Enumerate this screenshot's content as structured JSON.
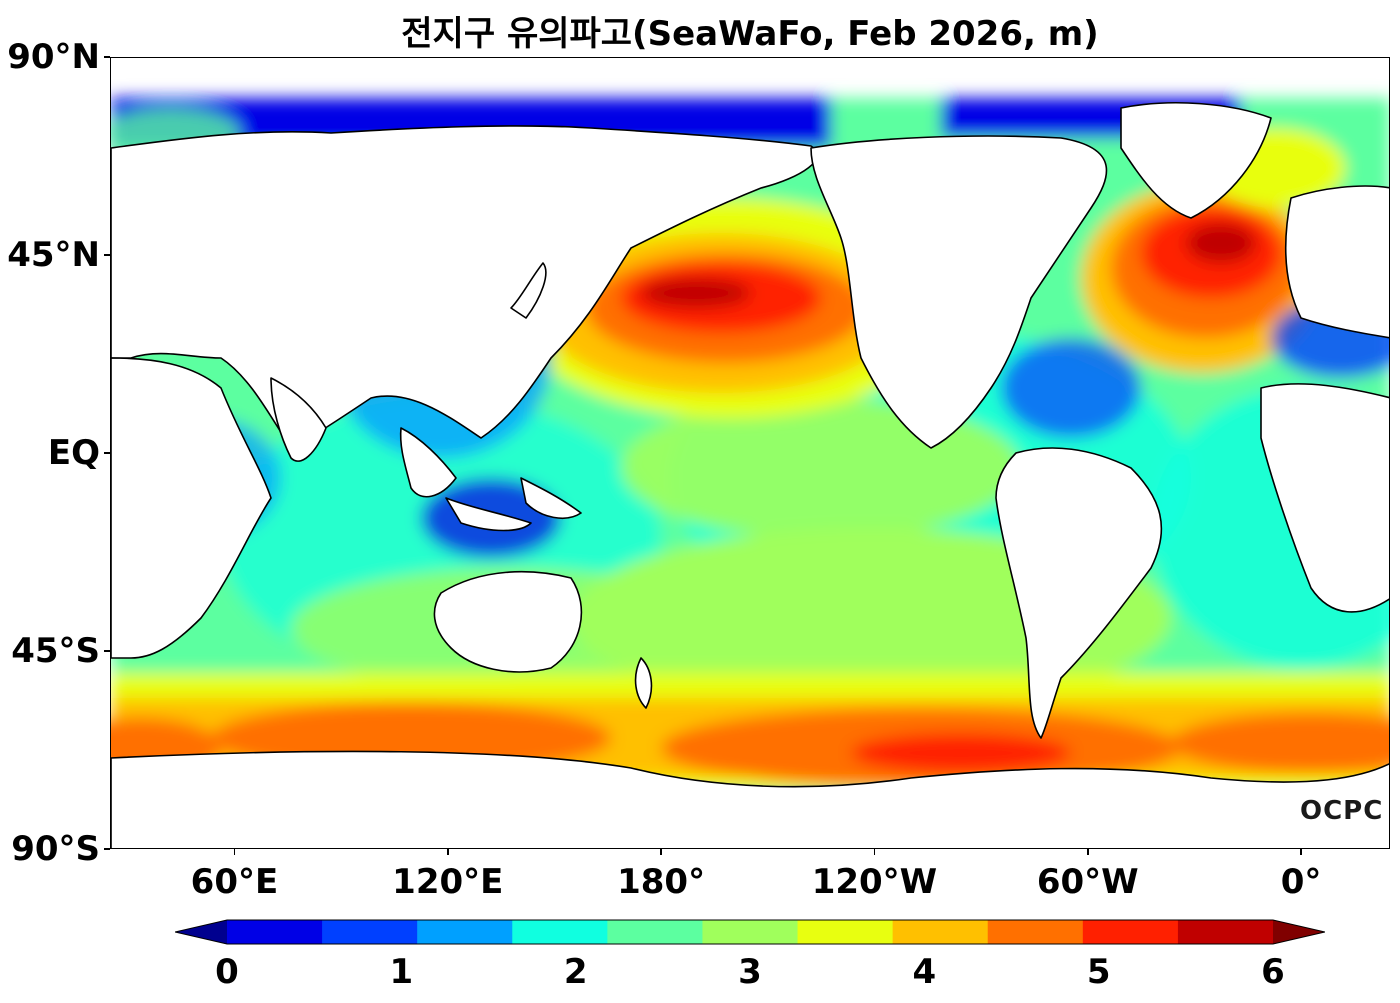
{
  "title": "전지구 유의파고(SeaWaFo, Feb 2026, m)",
  "logo_text": "OCPC",
  "map": {
    "lat_labels": [
      {
        "lat": 90,
        "text": "90°N"
      },
      {
        "lat": 45,
        "text": "45°N"
      },
      {
        "lat": 0,
        "text": "EQ"
      },
      {
        "lat": -45,
        "text": "45°S"
      },
      {
        "lat": -90,
        "text": "90°S"
      }
    ],
    "lon_labels": [
      {
        "lon": 60,
        "text": "60°E"
      },
      {
        "lon": 120,
        "text": "120°E"
      },
      {
        "lon": 180,
        "text": "180°"
      },
      {
        "lon": 240,
        "text": "120°W"
      },
      {
        "lon": 300,
        "text": "60°W"
      },
      {
        "lon": 360,
        "text": "0°"
      }
    ],
    "lon_range": [
      25,
      385
    ],
    "lat_range": [
      -90,
      90
    ]
  },
  "colorbar": {
    "ticks": [
      "0",
      "1",
      "2",
      "3",
      "4",
      "5",
      "6"
    ],
    "range": [
      0,
      6
    ],
    "step": 0.5,
    "colors": [
      "#00008f",
      "#0000e6",
      "#0040ff",
      "#00a0ff",
      "#10ffe0",
      "#5cffa0",
      "#a0ff5c",
      "#e8ff10",
      "#ffc000",
      "#ff7000",
      "#ff2000",
      "#c00000",
      "#800000"
    ],
    "extend": "both"
  }
}
